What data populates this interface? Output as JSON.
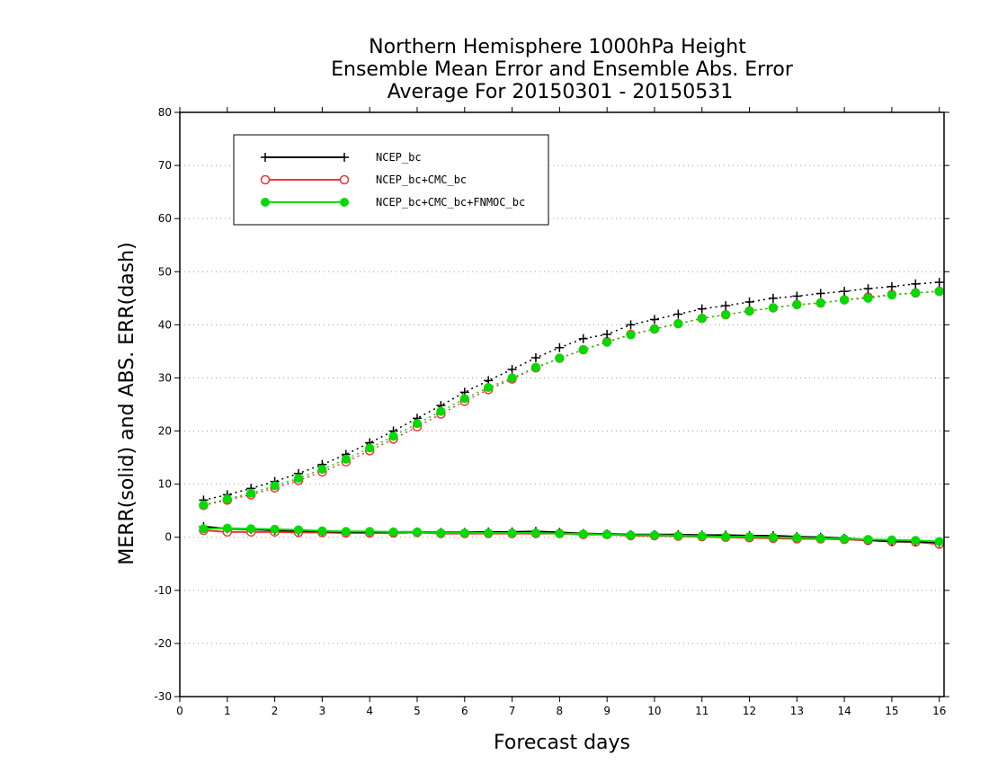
{
  "chart_data": {
    "type": "line",
    "title_lines": [
      "Northern Hemisphere 1000hPa Height",
      "Ensemble Mean Error and Ensemble Abs. Error",
      "Average For 20150301 - 20150531"
    ],
    "xlabel": "Forecast days",
    "ylabel": "MERR(solid) and ABS. ERR(dash)",
    "xlim": [
      0,
      16.1
    ],
    "ylim": [
      -30,
      80
    ],
    "xticks": [
      0,
      1,
      2,
      3,
      4,
      5,
      6,
      7,
      8,
      9,
      10,
      11,
      12,
      13,
      14,
      15,
      16
    ],
    "yticks": [
      -30,
      -20,
      -10,
      0,
      10,
      20,
      30,
      40,
      50,
      60,
      70,
      80
    ],
    "grid": "dotted horizontal",
    "legend_position": "top-left",
    "x": [
      0.5,
      1,
      1.5,
      2,
      2.5,
      3,
      3.5,
      4,
      4.5,
      5,
      5.5,
      6,
      6.5,
      7,
      7.5,
      8,
      8.5,
      9,
      9.5,
      10,
      10.5,
      11,
      11.5,
      12,
      12.5,
      13,
      13.5,
      14,
      14.5,
      15,
      15.5,
      16
    ],
    "series": [
      {
        "name": "NCEP_bc",
        "color": "#000000",
        "marker": "plus",
        "merr": [
          2.0,
          1.6,
          1.5,
          1.3,
          1.2,
          1.1,
          1.0,
          1.0,
          1.0,
          1.0,
          0.9,
          0.9,
          1.0,
          1.0,
          1.1,
          0.9,
          0.7,
          0.6,
          0.5,
          0.5,
          0.5,
          0.4,
          0.4,
          0.3,
          0.3,
          0.1,
          0.0,
          -0.2,
          -0.5,
          -0.8,
          -0.8,
          -1.0
        ],
        "abs_err": [
          7.0,
          8.0,
          9.2,
          10.5,
          12.0,
          13.7,
          15.6,
          17.8,
          20.0,
          22.4,
          24.8,
          27.3,
          29.5,
          31.6,
          33.8,
          35.7,
          37.4,
          38.2,
          40.0,
          41.0,
          42.0,
          43.0,
          43.6,
          44.3,
          45.0,
          45.4,
          45.9,
          46.3,
          46.8,
          47.2,
          47.7,
          48.0
        ]
      },
      {
        "name": "NCEP_bc+CMC_bc",
        "color": "#f03232",
        "marker": "open-circle",
        "merr": [
          1.3,
          1.0,
          1.0,
          1.0,
          0.9,
          0.9,
          0.8,
          0.8,
          0.8,
          0.9,
          0.7,
          0.7,
          0.7,
          0.7,
          0.7,
          0.7,
          0.5,
          0.5,
          0.3,
          0.3,
          0.2,
          0.1,
          0.0,
          -0.1,
          -0.2,
          -0.3,
          -0.3,
          -0.4,
          -0.6,
          -0.8,
          -0.9,
          -1.3
        ],
        "abs_err": [
          6.0,
          7.0,
          8.0,
          9.3,
          10.7,
          12.3,
          14.2,
          16.3,
          18.5,
          20.8,
          23.2,
          25.6,
          27.8,
          29.8,
          31.9,
          33.7,
          35.3,
          36.8,
          38.2,
          39.2,
          40.2,
          41.2,
          41.9,
          42.6,
          43.2,
          43.8,
          44.1,
          44.7,
          45.2,
          45.7,
          46.0,
          46.3
        ]
      },
      {
        "name": "NCEP_bc+CMC_bc+FNMOC_bc",
        "color": "#00dc00",
        "marker": "filled-circle",
        "merr": [
          1.6,
          1.7,
          1.6,
          1.5,
          1.4,
          1.2,
          1.1,
          1.1,
          1.0,
          1.0,
          0.8,
          0.8,
          0.8,
          0.8,
          0.8,
          0.7,
          0.6,
          0.5,
          0.4,
          0.4,
          0.3,
          0.2,
          0.1,
          0.1,
          0.0,
          -0.1,
          -0.2,
          -0.3,
          -0.4,
          -0.5,
          -0.6,
          -0.8
        ],
        "abs_err": [
          6.1,
          7.2,
          8.3,
          9.7,
          11.1,
          12.8,
          14.7,
          16.8,
          19.0,
          21.4,
          23.7,
          26.1,
          28.2,
          30.0,
          32.0,
          33.7,
          35.3,
          36.7,
          38.1,
          39.2,
          40.2,
          41.2,
          41.9,
          42.6,
          43.2,
          43.8,
          44.1,
          44.7,
          45.0,
          45.6,
          46.0,
          46.3
        ]
      }
    ]
  }
}
